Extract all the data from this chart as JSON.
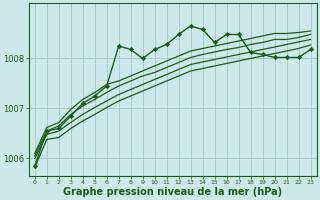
{
  "background_color": "#cce8e8",
  "grid_color": "#aacccc",
  "line_color": "#1a5c1a",
  "xlabel": "Graphe pression niveau de la mer (hPa)",
  "xlabel_fontsize": 7,
  "xlim": [
    -0.5,
    23.5
  ],
  "ylim": [
    1005.65,
    1009.1
  ],
  "yticks": [
    1006,
    1007,
    1008
  ],
  "xticks": [
    0,
    1,
    2,
    3,
    4,
    5,
    6,
    7,
    8,
    9,
    10,
    11,
    12,
    13,
    14,
    15,
    16,
    17,
    18,
    19,
    20,
    21,
    22,
    23
  ],
  "series": [
    {
      "x": [
        0,
        1,
        2,
        3,
        4,
        5,
        6,
        7,
        8,
        9,
        10,
        11,
        12,
        13,
        14,
        15,
        16,
        17,
        18,
        19,
        20,
        21,
        22,
        23
      ],
      "y": [
        1005.85,
        1006.55,
        1006.6,
        1006.85,
        1007.1,
        1007.25,
        1007.45,
        1008.25,
        1008.18,
        1008.0,
        1008.18,
        1008.28,
        1008.48,
        1008.65,
        1008.58,
        1008.32,
        1008.48,
        1008.48,
        1008.12,
        1008.08,
        1008.02,
        1008.02,
        1008.02,
        1008.18
      ],
      "marker": "D",
      "markersize": 2.2,
      "linewidth": 1.0,
      "dashed": false
    },
    {
      "x": [
        0,
        1,
        2,
        3,
        4,
        5,
        6,
        7,
        8,
        9,
        10,
        11,
        12,
        13,
        14,
        15,
        16,
        17,
        18,
        19,
        20,
        21,
        22,
        23
      ],
      "y": [
        1006.1,
        1006.62,
        1006.72,
        1006.98,
        1007.18,
        1007.32,
        1007.48,
        1007.55,
        1007.65,
        1007.75,
        1007.85,
        1007.95,
        1008.05,
        1008.15,
        1008.2,
        1008.25,
        1008.3,
        1008.35,
        1008.4,
        1008.45,
        1008.5,
        1008.5,
        1008.52,
        1008.55
      ],
      "marker": null,
      "markersize": 0,
      "linewidth": 0.9,
      "dashed": false
    },
    {
      "x": [
        0,
        1,
        2,
        3,
        4,
        5,
        6,
        7,
        8,
        9,
        10,
        11,
        12,
        13,
        14,
        15,
        16,
        17,
        18,
        19,
        20,
        21,
        22,
        23
      ],
      "y": [
        1006.05,
        1006.55,
        1006.65,
        1006.88,
        1007.05,
        1007.18,
        1007.32,
        1007.45,
        1007.55,
        1007.65,
        1007.72,
        1007.82,
        1007.92,
        1008.02,
        1008.08,
        1008.13,
        1008.18,
        1008.22,
        1008.28,
        1008.32,
        1008.38,
        1008.38,
        1008.42,
        1008.48
      ],
      "marker": null,
      "markersize": 0,
      "linewidth": 0.9,
      "dashed": false
    },
    {
      "x": [
        0,
        1,
        2,
        3,
        4,
        5,
        6,
        7,
        8,
        9,
        10,
        11,
        12,
        13,
        14,
        15,
        16,
        17,
        18,
        19,
        20,
        21,
        22,
        23
      ],
      "y": [
        1006.0,
        1006.48,
        1006.55,
        1006.72,
        1006.88,
        1007.02,
        1007.15,
        1007.28,
        1007.38,
        1007.48,
        1007.58,
        1007.68,
        1007.78,
        1007.88,
        1007.93,
        1007.98,
        1008.03,
        1008.08,
        1008.13,
        1008.18,
        1008.23,
        1008.28,
        1008.33,
        1008.38
      ],
      "marker": null,
      "markersize": 0,
      "linewidth": 0.9,
      "dashed": false
    },
    {
      "x": [
        0,
        1,
        2,
        3,
        4,
        5,
        6,
        7,
        8,
        9,
        10,
        11,
        12,
        13,
        14,
        15,
        16,
        17,
        18,
        19,
        20,
        21,
        22,
        23
      ],
      "y": [
        1005.82,
        1006.38,
        1006.42,
        1006.6,
        1006.75,
        1006.88,
        1007.02,
        1007.15,
        1007.25,
        1007.35,
        1007.45,
        1007.55,
        1007.65,
        1007.75,
        1007.8,
        1007.85,
        1007.9,
        1007.95,
        1008.0,
        1008.05,
        1008.1,
        1008.15,
        1008.2,
        1008.27
      ],
      "marker": null,
      "markersize": 0,
      "linewidth": 0.9,
      "dashed": false
    }
  ]
}
